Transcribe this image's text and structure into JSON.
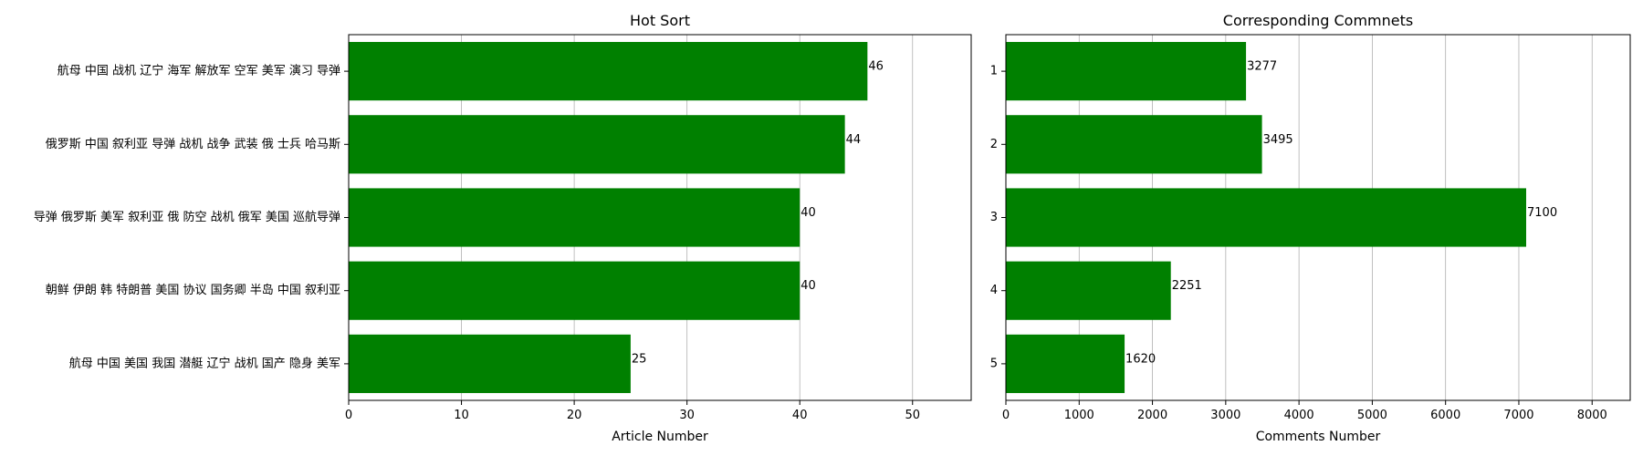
{
  "chart_data": [
    {
      "type": "bar",
      "orientation": "horizontal",
      "title": "Hot Sort",
      "xlabel": "Article Number",
      "ylabel": "",
      "categories": [
        "航母 中国 战机 辽宁 海军 解放军 空军 美军 演习 导弹",
        "俄罗斯 中国 叙利亚 导弹 战机 战争 武装 俄 士兵 哈马斯",
        "导弹 俄罗斯 美军 叙利亚 俄 防空 战机 俄军 美国 巡航导弹",
        "朝鲜 伊朗 韩 特朗普 美国 协议 国务卿 半岛 中国 叙利亚",
        "航母 中国 美国 我国 潜艇 辽宁 战机 国产 隐身 美军"
      ],
      "values": [
        46,
        44,
        40,
        40,
        25
      ],
      "value_labels": [
        "46",
        "44",
        "40",
        "40",
        "25"
      ],
      "xlim": [
        0,
        55.2
      ],
      "xticks": [
        0,
        10,
        20,
        30,
        40,
        50
      ],
      "xtick_labels": [
        "0",
        "10",
        "20",
        "30",
        "40",
        "50"
      ],
      "grid": "vertical",
      "bar_color": "#008000"
    },
    {
      "type": "bar",
      "orientation": "horizontal",
      "title": "Corresponding Commnets",
      "xlabel": "Comments Number",
      "ylabel": "",
      "categories": [
        "1",
        "2",
        "3",
        "4",
        "5"
      ],
      "values": [
        3277,
        3495,
        7100,
        2251,
        1620
      ],
      "value_labels": [
        "3277",
        "3495",
        "7100",
        "2251",
        "1620"
      ],
      "xlim": [
        0,
        8520
      ],
      "xticks": [
        0,
        1000,
        2000,
        3000,
        4000,
        5000,
        6000,
        7000,
        8000
      ],
      "xtick_labels": [
        "0",
        "1000",
        "2000",
        "3000",
        "4000",
        "5000",
        "6000",
        "7000",
        "8000"
      ],
      "grid": "vertical",
      "bar_color": "#008000"
    }
  ]
}
